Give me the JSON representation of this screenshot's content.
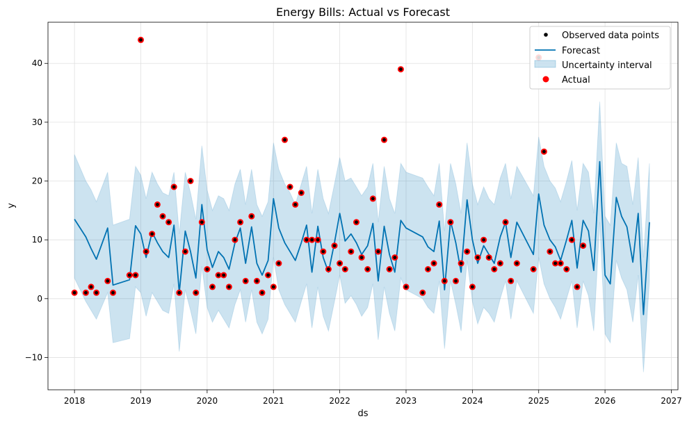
{
  "chart_data": {
    "type": "line",
    "title": "Energy Bills: Actual vs Forecast",
    "xlabel": "ds",
    "ylabel": "y",
    "xlim": [
      2017.6,
      2027.1
    ],
    "ylim": [
      -15.5,
      47
    ],
    "x_ticks": [
      2018,
      2019,
      2020,
      2021,
      2022,
      2023,
      2024,
      2025,
      2026,
      2027
    ],
    "x_tick_labels": [
      "2018",
      "2019",
      "2020",
      "2021",
      "2022",
      "2023",
      "2024",
      "2025",
      "2026",
      "2027"
    ],
    "y_ticks": [
      -10,
      0,
      10,
      20,
      30,
      40
    ],
    "y_tick_labels": [
      "−10",
      "0",
      "10",
      "20",
      "30",
      "40"
    ],
    "grid": true,
    "legend_position": "top-right",
    "colors": {
      "forecast": "#0072B2",
      "uncertainty": "#0072B2",
      "actual": "#ff0000",
      "observed": "#000000",
      "grid": "#e0e0e0"
    },
    "series": [
      {
        "name": "Observed data points",
        "kind": "points",
        "x": [
          2018.0,
          2018.17,
          2018.25,
          2018.33,
          2018.5,
          2018.58,
          2018.83,
          2018.92,
          2019.0,
          2019.08,
          2019.17,
          2019.25,
          2019.33,
          2019.42,
          2019.5,
          2019.58,
          2019.67,
          2019.75,
          2019.83,
          2019.92,
          2020.0,
          2020.08,
          2020.17,
          2020.25,
          2020.33,
          2020.42,
          2020.5,
          2020.58,
          2020.67,
          2020.75,
          2020.83,
          2020.92,
          2021.0,
          2021.08,
          2021.17,
          2021.25,
          2021.33,
          2021.42,
          2021.5,
          2021.58,
          2021.67,
          2021.75,
          2021.83,
          2021.92,
          2022.0,
          2022.08,
          2022.17,
          2022.25,
          2022.33,
          2022.42,
          2022.5,
          2022.58,
          2022.67,
          2022.75,
          2022.83,
          2022.92,
          2023.0,
          2023.25,
          2023.33,
          2023.42,
          2023.5,
          2023.58,
          2023.67,
          2023.75,
          2023.83,
          2023.92,
          2024.0,
          2024.08,
          2024.17,
          2024.25,
          2024.33,
          2024.42,
          2024.5,
          2024.58,
          2024.67,
          2024.92,
          2025.0,
          2025.08,
          2025.17,
          2025.25,
          2025.33,
          2025.42,
          2025.5,
          2025.58,
          2025.67
        ],
        "y": [
          1,
          1,
          2,
          1,
          3,
          1,
          4,
          4,
          44,
          8,
          11,
          16,
          14,
          13,
          19,
          1,
          8,
          20,
          1,
          13,
          5,
          2,
          4,
          4,
          2,
          10,
          13,
          3,
          14,
          3,
          1,
          4,
          2,
          6,
          27,
          19,
          16,
          18,
          10,
          10,
          10,
          8,
          5,
          9,
          6,
          5,
          8,
          13,
          7,
          5,
          17,
          8,
          27,
          5,
          7,
          39,
          2,
          1,
          5,
          6,
          16,
          3,
          13,
          3,
          6,
          8,
          2,
          7,
          10,
          7,
          5,
          6,
          13,
          3,
          6,
          5,
          41,
          25,
          8,
          6,
          6,
          5,
          10,
          2,
          9
        ]
      },
      {
        "name": "Forecast",
        "kind": "line",
        "x": [
          2018.0,
          2018.17,
          2018.25,
          2018.33,
          2018.5,
          2018.58,
          2018.83,
          2018.92,
          2019.0,
          2019.08,
          2019.17,
          2019.25,
          2019.33,
          2019.42,
          2019.5,
          2019.58,
          2019.67,
          2019.75,
          2019.83,
          2019.92,
          2020.0,
          2020.08,
          2020.17,
          2020.25,
          2020.33,
          2020.42,
          2020.5,
          2020.58,
          2020.67,
          2020.75,
          2020.83,
          2020.92,
          2021.0,
          2021.08,
          2021.17,
          2021.25,
          2021.33,
          2021.42,
          2021.5,
          2021.58,
          2021.67,
          2021.75,
          2021.83,
          2021.92,
          2022.0,
          2022.08,
          2022.17,
          2022.25,
          2022.33,
          2022.42,
          2022.5,
          2022.58,
          2022.67,
          2022.75,
          2022.83,
          2022.92,
          2023.0,
          2023.25,
          2023.33,
          2023.42,
          2023.5,
          2023.58,
          2023.67,
          2023.75,
          2023.83,
          2023.92,
          2024.0,
          2024.08,
          2024.17,
          2024.25,
          2024.33,
          2024.42,
          2024.5,
          2024.58,
          2024.67,
          2024.92,
          2025.0,
          2025.08,
          2025.17,
          2025.25,
          2025.33,
          2025.42,
          2025.5,
          2025.58,
          2025.67,
          2025.75,
          2025.83,
          2025.92,
          2026.0,
          2026.08,
          2026.17,
          2026.25,
          2026.33,
          2026.42,
          2026.5,
          2026.58,
          2026.67
        ],
        "y": [
          13.5,
          10.5,
          8.5,
          6.7,
          12.0,
          2.3,
          3.2,
          12.4,
          11.0,
          7.0,
          11.3,
          9.5,
          8.0,
          7.0,
          12.5,
          1.0,
          11.5,
          8.0,
          3.5,
          16.0,
          8.3,
          5.3,
          8.0,
          7.0,
          5.0,
          9.5,
          12.0,
          6.0,
          12.2,
          6.0,
          4.0,
          6.5,
          17.0,
          12.0,
          9.5,
          8.0,
          6.5,
          9.5,
          12.5,
          4.5,
          12.3,
          7.0,
          4.5,
          9.5,
          14.5,
          9.8,
          11.0,
          9.5,
          7.5,
          9.0,
          12.8,
          3.0,
          12.3,
          7.5,
          4.5,
          13.3,
          12.0,
          10.5,
          8.8,
          8.0,
          13.2,
          1.5,
          13.2,
          9.5,
          4.5,
          16.8,
          10.0,
          6.0,
          9.0,
          7.5,
          6.0,
          10.5,
          13.0,
          7.0,
          13.0,
          7.5,
          17.8,
          12.5,
          10.0,
          8.8,
          6.5,
          10.0,
          13.3,
          5.2,
          13.3,
          11.5,
          4.8,
          23.3,
          4.0,
          2.5,
          17.2,
          14.0,
          12.2,
          6.2,
          14.5,
          -2.7,
          13.0
        ]
      },
      {
        "name": "Uncertainty interval",
        "kind": "band",
        "x": [
          2018.0,
          2018.17,
          2018.25,
          2018.33,
          2018.5,
          2018.58,
          2018.83,
          2018.92,
          2019.0,
          2019.08,
          2019.17,
          2019.25,
          2019.33,
          2019.42,
          2019.5,
          2019.58,
          2019.67,
          2019.75,
          2019.83,
          2019.92,
          2020.0,
          2020.08,
          2020.17,
          2020.25,
          2020.33,
          2020.42,
          2020.5,
          2020.58,
          2020.67,
          2020.75,
          2020.83,
          2020.92,
          2021.0,
          2021.08,
          2021.17,
          2021.25,
          2021.33,
          2021.42,
          2021.5,
          2021.58,
          2021.67,
          2021.75,
          2021.83,
          2021.92,
          2022.0,
          2022.08,
          2022.17,
          2022.25,
          2022.33,
          2022.42,
          2022.5,
          2022.58,
          2022.67,
          2022.75,
          2022.83,
          2022.92,
          2023.0,
          2023.25,
          2023.33,
          2023.42,
          2023.5,
          2023.58,
          2023.67,
          2023.75,
          2023.83,
          2023.92,
          2024.0,
          2024.08,
          2024.17,
          2024.25,
          2024.33,
          2024.42,
          2024.5,
          2024.58,
          2024.67,
          2024.92,
          2025.0,
          2025.08,
          2025.17,
          2025.25,
          2025.33,
          2025.42,
          2025.5,
          2025.58,
          2025.67,
          2025.75,
          2025.83,
          2025.92,
          2026.0,
          2026.08,
          2026.17,
          2026.25,
          2026.33,
          2026.42,
          2026.5,
          2026.58,
          2026.67
        ],
        "lower": [
          3.5,
          -0.5,
          -2.0,
          -3.5,
          1.0,
          -7.5,
          -6.8,
          2.0,
          1.0,
          -3.0,
          1.0,
          -0.5,
          -2.0,
          -2.5,
          2.5,
          -9.0,
          1.5,
          -2.0,
          -6.0,
          5.5,
          -1.5,
          -4.0,
          -2.0,
          -3.5,
          -5.0,
          -1.0,
          1.5,
          -4.0,
          1.5,
          -4.0,
          -6.0,
          -3.5,
          7.0,
          1.5,
          -1.0,
          -2.5,
          -4.0,
          -0.5,
          2.5,
          -5.0,
          2.0,
          -3.0,
          -5.5,
          -0.5,
          4.0,
          -0.8,
          0.5,
          -1.0,
          -3.0,
          -1.5,
          2.5,
          -7.0,
          2.0,
          -2.5,
          -5.5,
          3.5,
          1.5,
          0.0,
          -1.5,
          -2.5,
          3.0,
          -8.5,
          3.0,
          -1.0,
          -5.5,
          6.5,
          -0.5,
          -4.3,
          -1.5,
          -2.5,
          -4.0,
          0.0,
          3.0,
          -3.5,
          3.0,
          -2.5,
          7.0,
          2.5,
          0.0,
          -1.5,
          -3.5,
          0.0,
          3.0,
          -5.0,
          3.0,
          0.5,
          -5.5,
          13.0,
          -6.0,
          -7.5,
          6.5,
          3.5,
          1.5,
          -4.0,
          4.0,
          -12.5,
          3.0
        ],
        "upper": [
          24.5,
          20.0,
          18.5,
          16.5,
          21.5,
          12.5,
          13.5,
          22.5,
          21.0,
          17.0,
          21.5,
          19.5,
          18.0,
          17.5,
          21.5,
          11.0,
          21.5,
          18.0,
          13.5,
          26.0,
          18.5,
          15.0,
          17.5,
          17.0,
          15.0,
          19.5,
          22.0,
          16.0,
          22.0,
          16.0,
          14.0,
          16.5,
          26.5,
          22.0,
          19.5,
          18.0,
          16.0,
          19.5,
          22.5,
          14.5,
          22.0,
          17.0,
          14.5,
          19.5,
          24.0,
          20.0,
          20.5,
          19.0,
          17.5,
          19.0,
          23.0,
          13.0,
          22.5,
          17.0,
          14.5,
          23.0,
          21.5,
          20.5,
          19.0,
          17.5,
          23.0,
          11.5,
          23.0,
          19.5,
          14.5,
          26.5,
          19.5,
          16.0,
          19.0,
          17.0,
          16.0,
          20.5,
          23.0,
          17.0,
          22.5,
          17.5,
          27.5,
          22.5,
          20.0,
          18.8,
          16.5,
          20.0,
          23.5,
          15.0,
          23.0,
          21.5,
          14.5,
          33.5,
          14.0,
          12.5,
          26.5,
          23.0,
          22.5,
          16.0,
          24.0,
          7.0,
          23.0
        ]
      },
      {
        "name": "Actual",
        "kind": "points",
        "x": [
          2018.0,
          2018.17,
          2018.25,
          2018.33,
          2018.5,
          2018.58,
          2018.83,
          2018.92,
          2019.0,
          2019.08,
          2019.17,
          2019.25,
          2019.33,
          2019.42,
          2019.5,
          2019.58,
          2019.67,
          2019.75,
          2019.83,
          2019.92,
          2020.0,
          2020.08,
          2020.17,
          2020.25,
          2020.33,
          2020.42,
          2020.5,
          2020.58,
          2020.67,
          2020.75,
          2020.83,
          2020.92,
          2021.0,
          2021.08,
          2021.17,
          2021.25,
          2021.33,
          2021.42,
          2021.5,
          2021.58,
          2021.67,
          2021.75,
          2021.83,
          2021.92,
          2022.0,
          2022.08,
          2022.17,
          2022.25,
          2022.33,
          2022.42,
          2022.5,
          2022.58,
          2022.67,
          2022.75,
          2022.83,
          2022.92,
          2023.0,
          2023.25,
          2023.33,
          2023.42,
          2023.5,
          2023.58,
          2023.67,
          2023.75,
          2023.83,
          2023.92,
          2024.0,
          2024.08,
          2024.17,
          2024.25,
          2024.33,
          2024.42,
          2024.5,
          2024.58,
          2024.67,
          2024.92,
          2025.0,
          2025.08,
          2025.17,
          2025.25,
          2025.33,
          2025.42,
          2025.5,
          2025.58,
          2025.67
        ],
        "y": [
          1,
          1,
          2,
          1,
          3,
          1,
          4,
          4,
          44,
          8,
          11,
          16,
          14,
          13,
          19,
          1,
          8,
          20,
          1,
          13,
          5,
          2,
          4,
          4,
          2,
          10,
          13,
          3,
          14,
          3,
          1,
          4,
          2,
          6,
          27,
          19,
          16,
          18,
          10,
          10,
          10,
          8,
          5,
          9,
          6,
          5,
          8,
          13,
          7,
          5,
          17,
          8,
          27,
          5,
          7,
          39,
          2,
          1,
          5,
          6,
          16,
          3,
          13,
          3,
          6,
          8,
          2,
          7,
          10,
          7,
          5,
          6,
          13,
          3,
          6,
          5,
          41,
          25,
          8,
          6,
          6,
          5,
          10,
          2,
          9
        ]
      }
    ]
  }
}
